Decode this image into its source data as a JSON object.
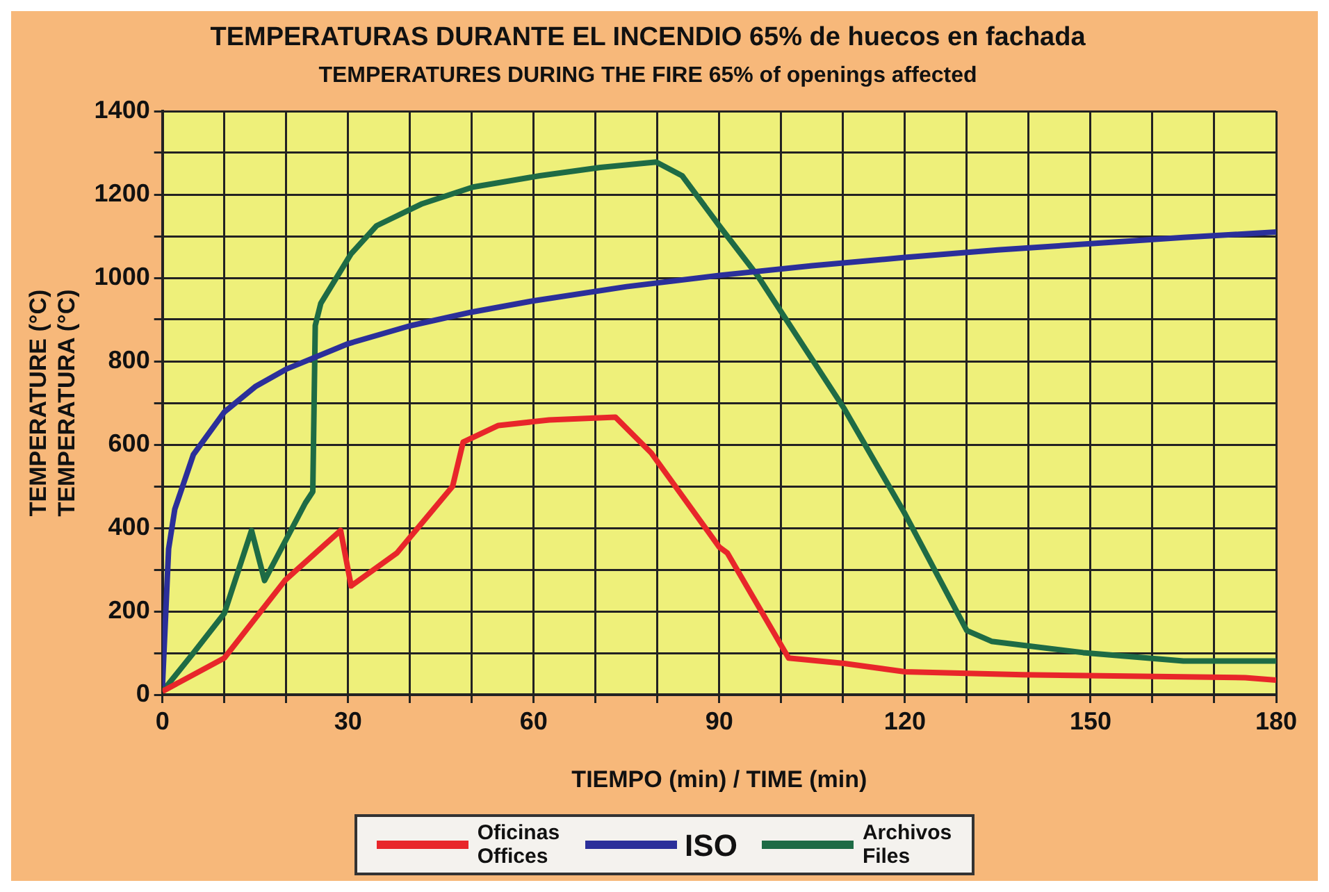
{
  "chart_data": {
    "type": "line",
    "title": "TEMPERATURAS DURANTE EL INCENDIO 65% de huecos en fachada",
    "subtitle": "TEMPERATURES DURING THE FIRE 65% of openings affected",
    "xlabel": "TIEMPO (min) / TIME (min)",
    "ylabel": "TEMPERATURE (°C)\nTEMPERATURA (°C)",
    "xlim": [
      0,
      180
    ],
    "xticks": [
      0,
      {
        "value": 10,
        "label": null
      },
      {
        "value": 20,
        "label": null
      },
      30,
      {
        "value": 40,
        "label": null
      },
      {
        "value": 50,
        "label": null
      },
      60,
      {
        "value": 70,
        "label": null
      },
      {
        "value": 80,
        "label": null
      },
      90,
      {
        "value": 100,
        "label": null
      },
      {
        "value": 110,
        "label": null
      },
      120,
      {
        "value": 130,
        "label": null
      },
      {
        "value": 140,
        "label": null
      },
      150,
      {
        "value": 160,
        "label": null
      },
      {
        "value": 170,
        "label": null
      },
      180
    ],
    "ylim": [
      0,
      1400
    ],
    "yticks": [
      0,
      {
        "value": 100,
        "label": null
      },
      200,
      {
        "value": 300,
        "label": null
      },
      400,
      {
        "value": 500,
        "label": null
      },
      600,
      {
        "value": 700,
        "label": null
      },
      800,
      {
        "value": 900,
        "label": null
      },
      1000,
      {
        "value": 1100,
        "label": null
      },
      1200,
      {
        "value": 1300,
        "label": null
      },
      1400
    ],
    "grid": true,
    "legend": "bottom",
    "marker": "none",
    "line_style": "solid",
    "series": [
      {
        "name": "Oficinas\nOffices",
        "color": "#e8262a",
        "x": [
          0,
          10,
          19.8,
          28.8,
          30.5,
          37.9,
          46.9,
          48.6,
          54.3,
          62.5,
          73.2,
          79,
          90,
          91.3,
          101.2,
          110.2,
          120,
          139,
          175,
          180
        ],
        "values": [
          8,
          88,
          274,
          394,
          261,
          340,
          500,
          606,
          646,
          659,
          666,
          580,
          354,
          340,
          88,
          75,
          55,
          48,
          41,
          35
        ]
      },
      {
        "name": "ISO",
        "color": "#2b2f9a",
        "x": [
          0,
          1,
          2,
          5,
          10,
          15,
          20,
          30,
          40,
          50,
          60,
          75,
          90,
          105,
          120,
          135,
          150,
          165,
          180
        ],
        "values": [
          20,
          350,
          445,
          576,
          678,
          739,
          781,
          842,
          885,
          918,
          945,
          979,
          1006,
          1029,
          1049,
          1067,
          1082,
          1097,
          1110
        ]
      },
      {
        "name": "Archivos\nFiles",
        "color": "#1e6b45",
        "x": [
          0,
          5,
          10,
          14.4,
          16.5,
          23.1,
          24.3,
          24.7,
          25.6,
          30.5,
          34.6,
          42,
          50.2,
          61,
          70.8,
          79.8,
          84,
          90,
          96.2,
          110.2,
          120,
          130,
          134,
          148.8,
          165,
          180
        ],
        "values": [
          8,
          100,
          195,
          394,
          274,
          460,
          487,
          886,
          939,
          1058,
          1125,
          1178,
          1218,
          1245,
          1265,
          1278,
          1245,
          1125,
          1005,
          686,
          434,
          154,
          128,
          101,
          81,
          81
        ]
      }
    ]
  }
}
